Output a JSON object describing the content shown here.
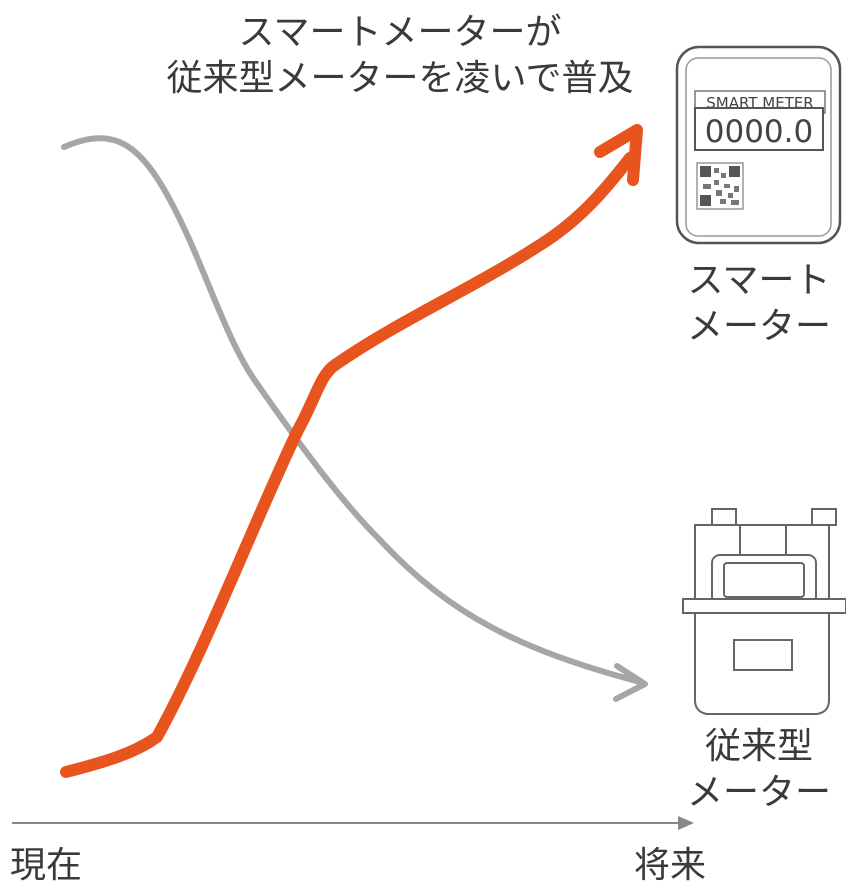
{
  "headline": {
    "line1": "スマートメーターが",
    "line2": "従来型メーターを凌いで普及"
  },
  "smart_meter": {
    "device_title": "SMART METER",
    "device_reading": "0000.0",
    "label_line1": "スマート",
    "label_line2": "メーター",
    "icon": "smart-meter-icon",
    "trend_color": "#e8541e"
  },
  "conventional_meter": {
    "label_line1": "従来型",
    "label_line2": "メーター",
    "icon": "gas-meter-icon",
    "trend_color": "#a6a6a6"
  },
  "time_axis": {
    "start_label": "現在",
    "end_label": "将来",
    "color": "#888888"
  }
}
